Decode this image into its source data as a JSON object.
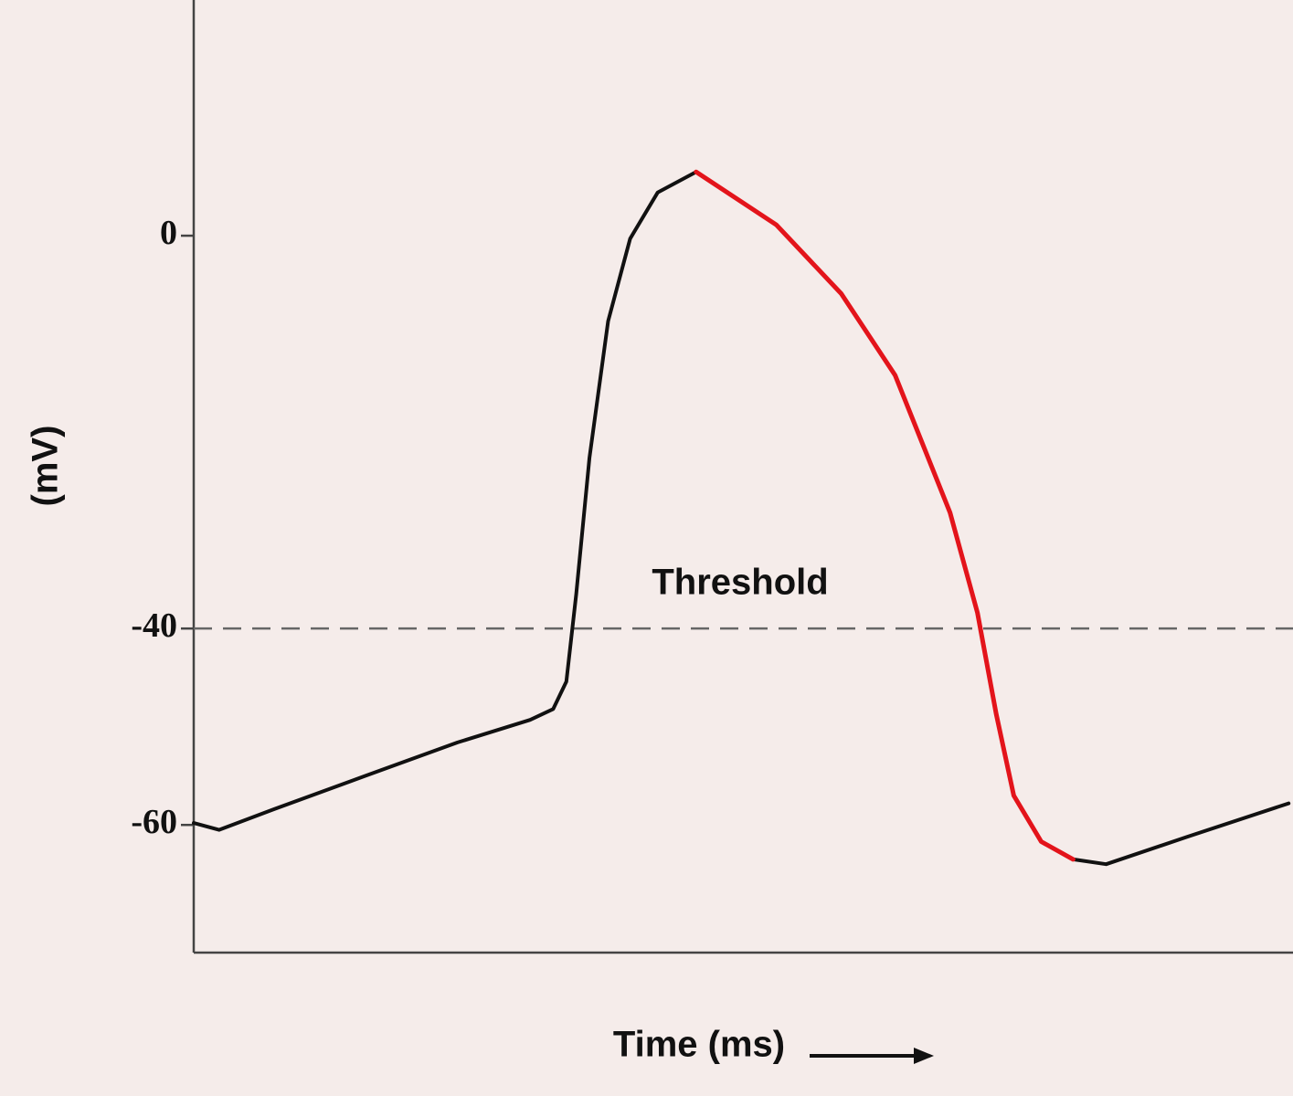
{
  "chart_data": {
    "type": "line",
    "ylabel": "(mV)",
    "xlabel": "Time (ms)",
    "x": [
      0,
      2.3,
      7.3,
      15.6,
      24,
      30.6,
      32.7,
      33.9,
      34.8,
      36,
      37.7,
      39.7,
      42.2,
      45.7,
      53,
      58.9,
      63.8,
      68.8,
      71.3,
      73,
      74.6,
      77.1,
      80,
      83,
      90.4,
      99.6
    ],
    "series": [
      {
        "color": "#111111",
        "values": [
          -59.8,
          -60.5,
          -58.4,
          -55.0,
          -51.6,
          -49.3,
          -48.2,
          -45.4,
          -36.5,
          -22.6,
          -8.7,
          -0.3,
          4.4,
          6.5,
          null,
          null,
          null,
          null,
          null,
          null,
          null,
          null,
          -63.5,
          -64,
          -61.2,
          -57.8
        ]
      },
      {
        "color": "#e3141b",
        "values": [
          null,
          null,
          null,
          null,
          null,
          null,
          null,
          null,
          null,
          null,
          null,
          null,
          null,
          6.5,
          1.1,
          -5.9,
          -14.2,
          -28.2,
          -38.4,
          -48.7,
          -57,
          -61.7,
          -63.5,
          null,
          null,
          null
        ]
      }
    ],
    "threshold": {
      "label": "Threshold",
      "value": -40
    },
    "xlim": [
      0,
      100
    ],
    "ylim": [
      -73,
      24
    ],
    "yticks": [
      0,
      -40,
      -60
    ]
  }
}
